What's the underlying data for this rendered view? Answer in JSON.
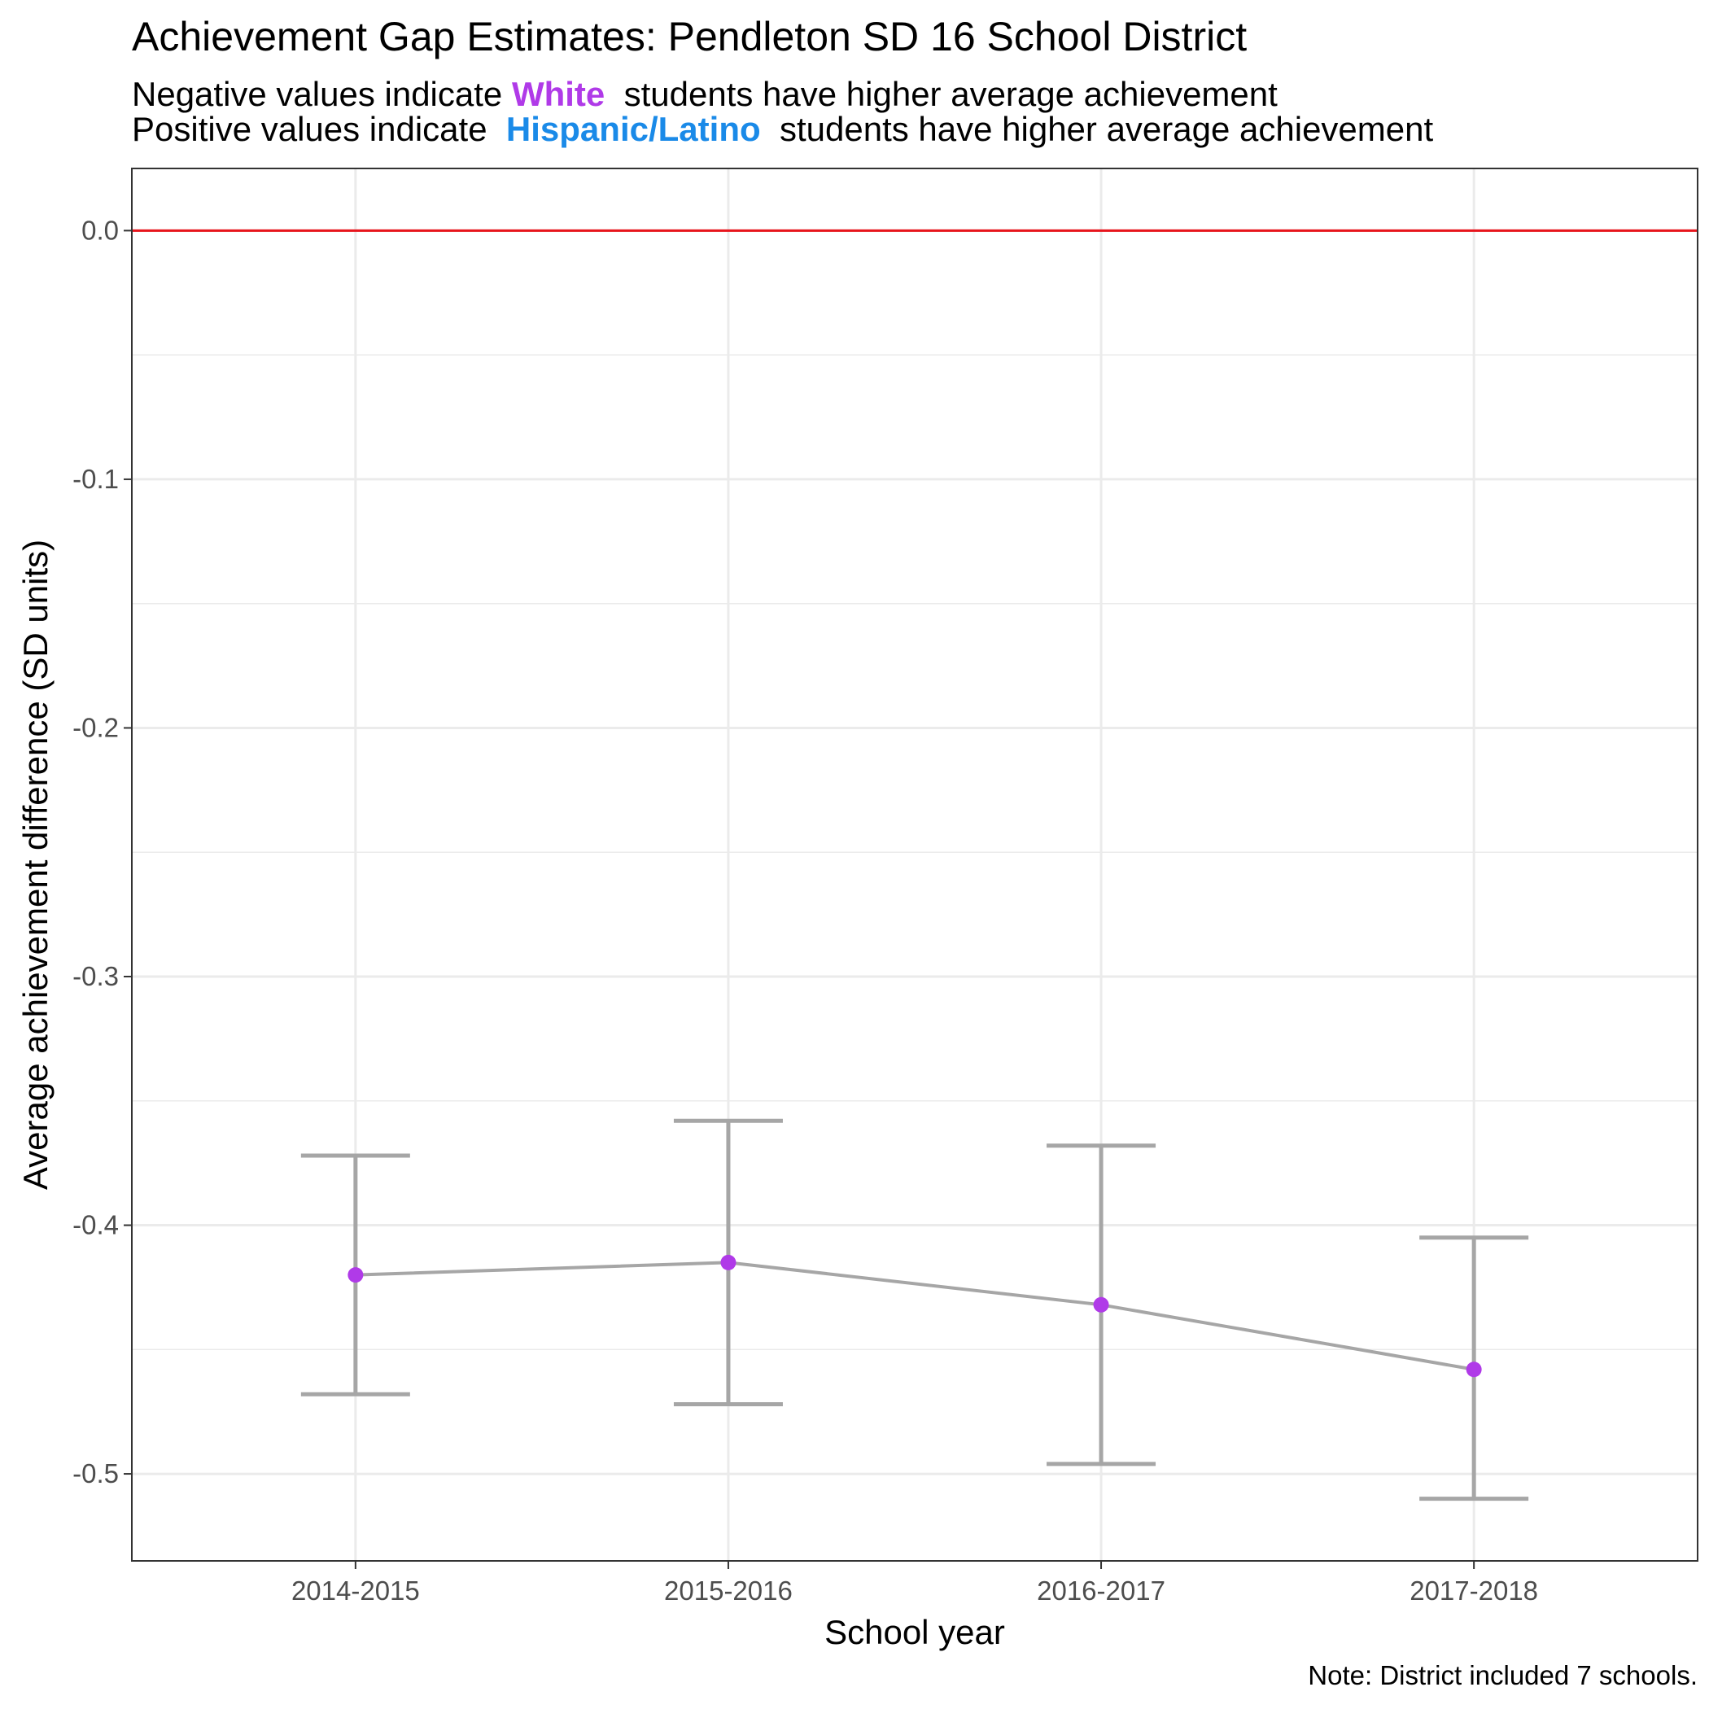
{
  "chart_data": {
    "type": "line",
    "title": "Achievement Gap Estimates: Pendleton SD 16 School District",
    "subtitle": {
      "line1_prefix": "Negative values indicate",
      "line1_group": "White",
      "line1_suffix": "students have higher average achievement",
      "line2_prefix": "Positive values indicate",
      "line2_group": "Hispanic/Latino",
      "line2_suffix": "students have higher average achievement"
    },
    "xlabel": "School year",
    "ylabel": "Average achievement difference (SD units)",
    "categories": [
      "2014-2015",
      "2015-2016",
      "2016-2017",
      "2017-2018"
    ],
    "series": [
      {
        "values": [
          -0.42,
          -0.415,
          -0.432,
          -0.458
        ],
        "lower": [
          -0.468,
          -0.472,
          -0.496,
          -0.51
        ],
        "upper": [
          -0.372,
          -0.358,
          -0.368,
          -0.405
        ]
      }
    ],
    "ylim": [
      -0.535,
      0.025
    ],
    "yticks": [
      0.0,
      -0.1,
      -0.2,
      -0.3,
      -0.4,
      -0.5
    ],
    "ytick_labels": [
      "0.0",
      "-0.1",
      "-0.2",
      "-0.3",
      "-0.4",
      "-0.5"
    ],
    "reference_line": 0.0,
    "grid": true,
    "note": "Note: District included 7 schools.",
    "colors": {
      "white_group": "#b03ae8",
      "hispanic_group": "#1a8ae8",
      "reference_line": "#e8141c",
      "line": "#a6a6a6",
      "errorbar": "#a6a6a6",
      "point": "#b03ae8",
      "grid": "#ebebeb",
      "panel_border": "#333333"
    }
  }
}
